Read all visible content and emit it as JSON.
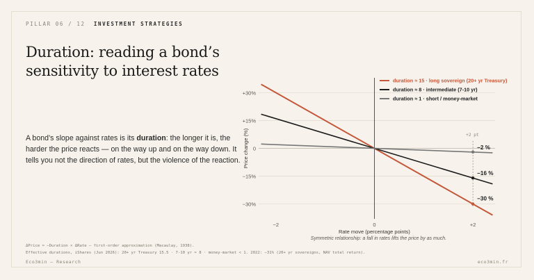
{
  "header": {
    "kicker_prefix": "PILLAR 06 / 12",
    "kicker_section": "INVESTMENT STRATEGIES"
  },
  "title": "Duration: reading a bond’s sensitivity to interest rates",
  "body": {
    "pre": "A bond’s slope against rates is its ",
    "bold": "duration",
    "post": ": the longer it is, the harder the price reacts — on the way up and on the way down. It tells you not the direction of rates, but the violence of the reaction."
  },
  "chart_data": {
    "type": "line",
    "title": "",
    "xlabel": "Rate move (percentage points)",
    "ylabel": "Price change (%)",
    "xlim": [
      -2.35,
      2.45
    ],
    "ylim": [
      -38,
      38
    ],
    "x_ticks": [
      -2,
      0,
      2
    ],
    "x_tick_labels": [
      "−2",
      "0",
      "+2"
    ],
    "y_ticks": [
      30,
      15,
      0,
      -15,
      -30
    ],
    "y_tick_labels": [
      "+30%",
      "+15%",
      "0",
      "−15%",
      "−30%"
    ],
    "caption": "Symmetric relationship: a fall in rates lifts the price by as much.",
    "marker_label": "+2 pt",
    "legend_position": "top-right",
    "grid": true,
    "series": [
      {
        "name": "duration ≈ 15 · long sovereign (20+ yr Treasury)",
        "slope": -15,
        "color": "#c4573a",
        "end_label": "−30 %"
      },
      {
        "name": "duration ≈ 8 · intermediate (7-10 yr)",
        "slope": -8,
        "color": "#1c1c1c",
        "end_label": "−16 %"
      },
      {
        "name": "duration ≈ 1 · short / money-market",
        "slope": -1,
        "color": "#777777",
        "end_label": "−2 %"
      }
    ]
  },
  "footnotes": [
    "ΔPrice ≈ −Duration × ΔRate — first-order approximation (Macaulay, 1938).",
    "Effective durations, iShares (Jun 2026): 20+ yr Treasury 15.5 · 7-10 yr ≈ 8 · money-market < 1. 2022: −31% (20+ yr sovereigns, NAV total return)."
  ],
  "footer": {
    "left": "Eco3min — Research",
    "right": "eco3min.fr"
  }
}
